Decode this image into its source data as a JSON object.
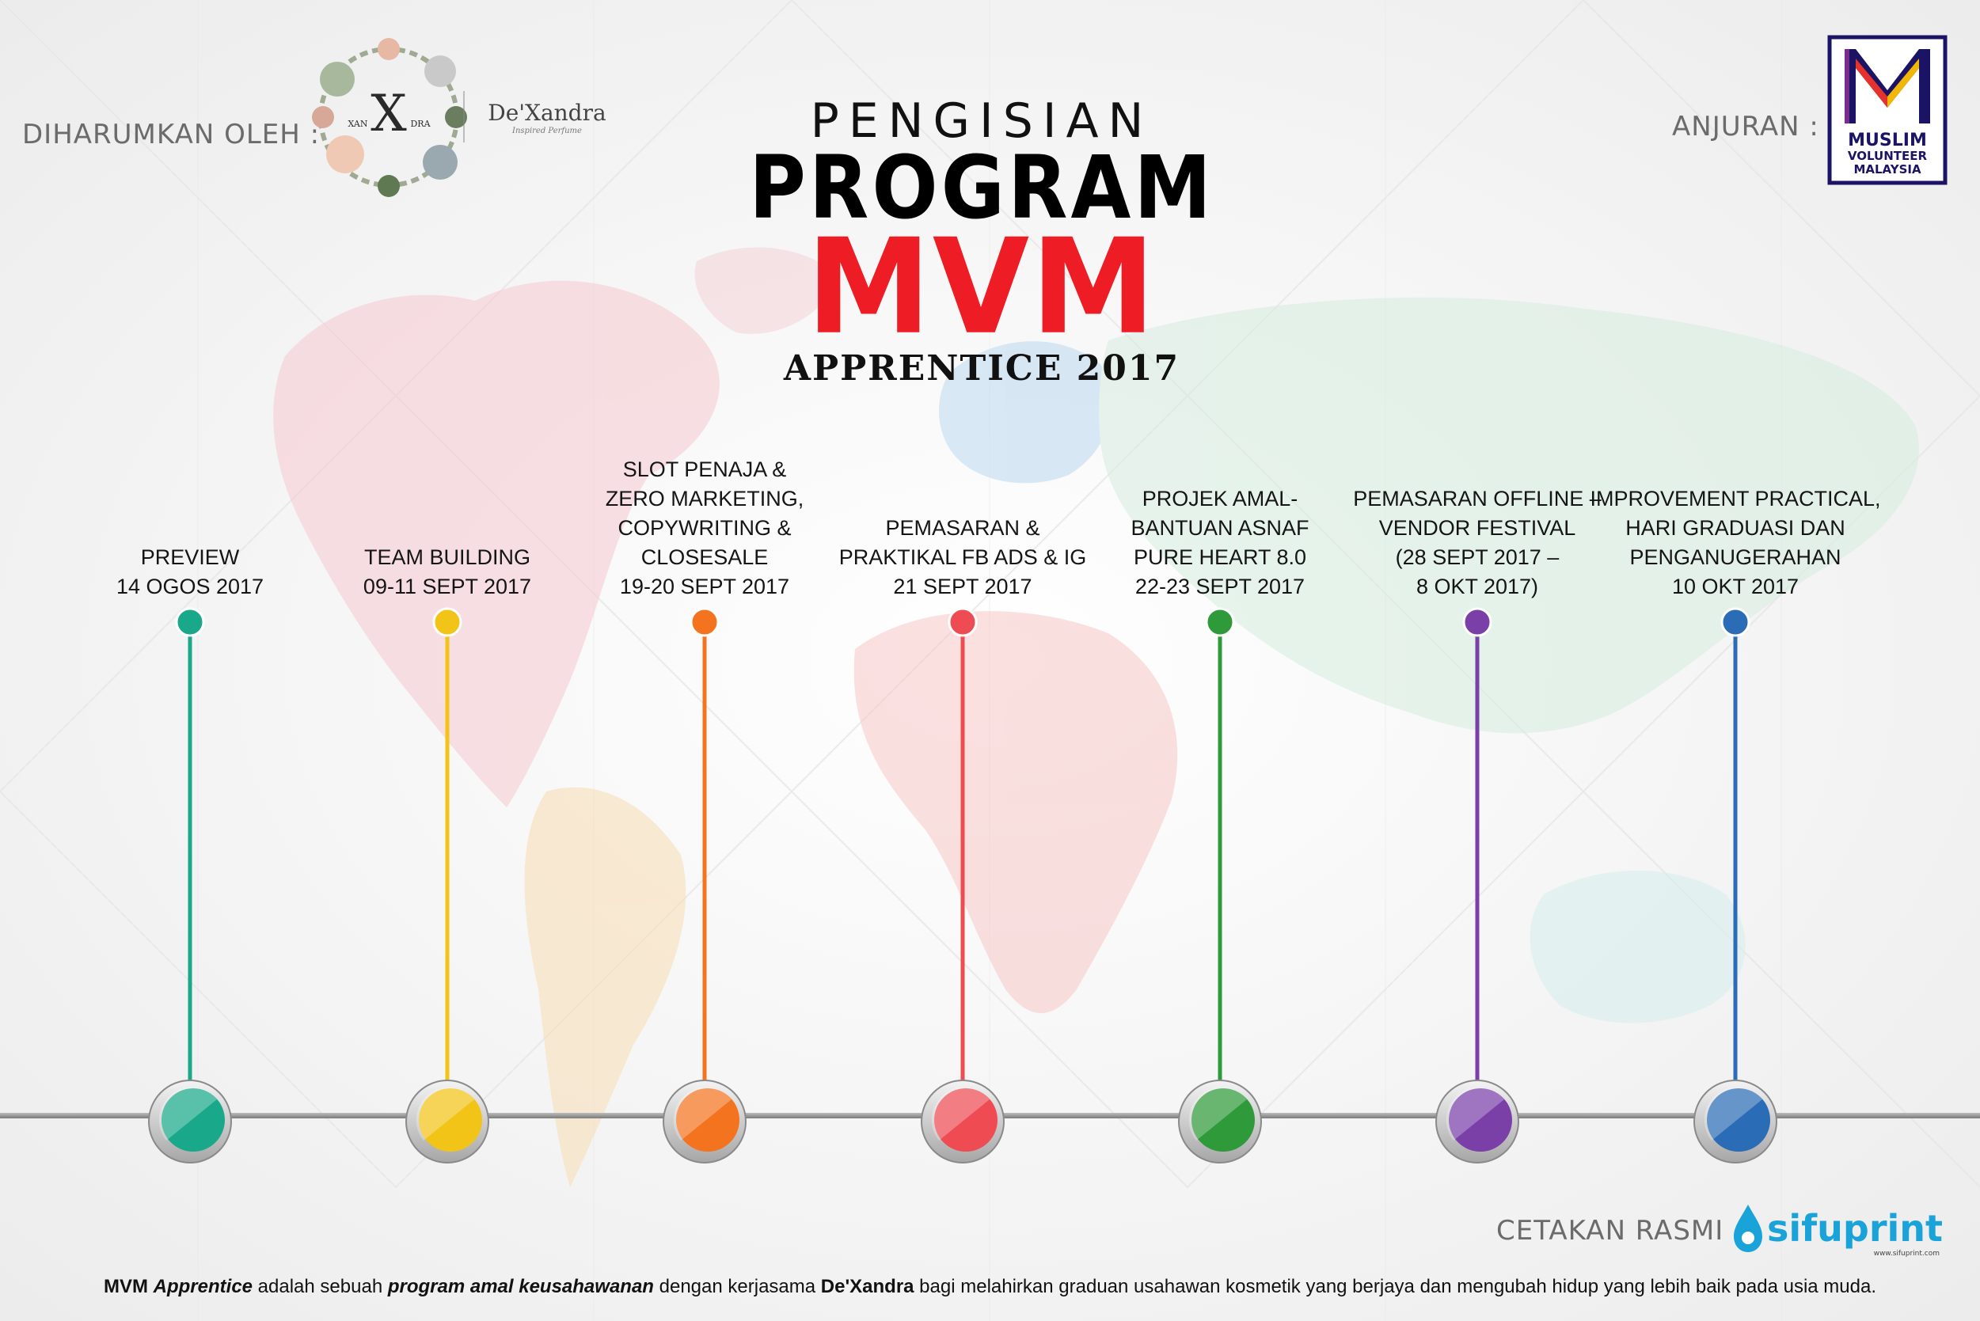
{
  "header": {
    "sponsor_label": "DIHARUMKAN OLEH :",
    "organizer_label": "ANJURAN :",
    "print_label": "CETAKAN RASMI :"
  },
  "logos": {
    "dexandra": {
      "brand_text": "De'Xandra",
      "tagline": "Inspired Perfume",
      "monogram": "X",
      "monogram_left": "XAN",
      "monogram_right": "DRA"
    },
    "mvm": {
      "line1": "MUSLIM",
      "line2": "VOLUNTEER",
      "line3": "MALAYSIA"
    },
    "sifuprint": {
      "name": "sifuprint",
      "url": "www.sifuprint.com"
    }
  },
  "title": {
    "line1": "PENGISIAN",
    "line2": "PROGRAM",
    "line3": "MVM",
    "line4": "APPRENTICE 2017"
  },
  "milestones": [
    {
      "lines": [
        "PREVIEW",
        "14 OGOS 2017"
      ],
      "color": "#1aa88a"
    },
    {
      "lines": [
        "TEAM BUILDING",
        "09-11 SEPT 2017"
      ],
      "color": "#f2c418"
    },
    {
      "lines": [
        "SLOT PENAJA &",
        "ZERO MARKETING,",
        "COPYWRITING &",
        "CLOSESALE",
        "19-20 SEPT 2017"
      ],
      "color": "#f4731f"
    },
    {
      "lines": [
        "PEMASARAN &",
        "PRAKTIKAL FB ADS & IG",
        "21 SEPT 2017"
      ],
      "color": "#ee4b52"
    },
    {
      "lines": [
        "PROJEK AMAL-",
        "BANTUAN ASNAF",
        "PURE HEART 8.0",
        "22-23 SEPT 2017"
      ],
      "color": "#2e9a3a"
    },
    {
      "lines": [
        "PEMASARAN OFFLINE –",
        "VENDOR FESTIVAL",
        "(28 SEPT 2017 –",
        "8 OKT 2017)"
      ],
      "color": "#7b3fa8"
    },
    {
      "lines": [
        "IMPROVEMENT PRACTICAL,",
        "HARI GRADUASI DAN",
        "PENGANUGERAHAN",
        "10 OKT 2017"
      ],
      "color": "#2b6cb6"
    }
  ],
  "footer": {
    "brand": "MVM",
    "brand_italic": "Apprentice",
    "text1": " adalah sebuah ",
    "emph": "program amal keusahawanan",
    "text2": " dengan kerjasama ",
    "partner": "De'Xandra",
    "text3": " bagi melahirkan graduan usahawan kosmetik yang berjaya dan mengubah hidup yang lebih baik pada usia muda."
  }
}
